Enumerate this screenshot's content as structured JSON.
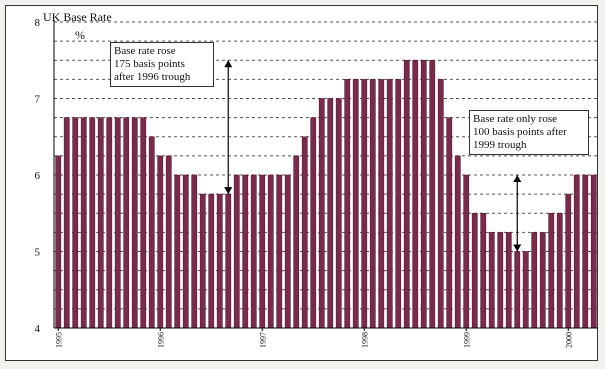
{
  "chart_data": {
    "type": "bar",
    "title": "UK Base Rate",
    "unit": "%",
    "ylim": [
      4,
      8
    ],
    "yticks": [
      "4",
      "5",
      "6",
      "7",
      "8"
    ],
    "xtick_labels": [
      {
        "label": "1995",
        "index": 0
      },
      {
        "label": "1996",
        "index": 12
      },
      {
        "label": "1997",
        "index": 24
      },
      {
        "label": "1998",
        "index": 36
      },
      {
        "label": "1999",
        "index": 48
      },
      {
        "label": "2000",
        "index": 60
      }
    ],
    "values": [
      6.25,
      6.75,
      6.75,
      6.75,
      6.75,
      6.75,
      6.75,
      6.75,
      6.75,
      6.75,
      6.75,
      6.5,
      6.25,
      6.25,
      6.0,
      6.0,
      6.0,
      5.75,
      5.75,
      5.75,
      5.75,
      6.0,
      6.0,
      6.0,
      6.0,
      6.0,
      6.0,
      6.0,
      6.25,
      6.5,
      6.75,
      7.0,
      7.0,
      7.0,
      7.25,
      7.25,
      7.25,
      7.25,
      7.25,
      7.25,
      7.25,
      7.5,
      7.5,
      7.5,
      7.5,
      7.25,
      6.75,
      6.25,
      6.0,
      5.5,
      5.5,
      5.25,
      5.25,
      5.25,
      5.0,
      5.0,
      5.25,
      5.25,
      5.5,
      5.5,
      5.75,
      6.0,
      6.0,
      6.0
    ],
    "annotations": [
      {
        "lines": [
          "Base rate rose",
          "175 basis points",
          "after 1996 trough"
        ]
      },
      {
        "lines": [
          "Base rate only rose",
          "100 basis points after",
          "1999 trough"
        ]
      }
    ]
  },
  "colors": {
    "bar_fill": "#7a2a4a",
    "bar_edge": "#4a1028",
    "grid": "#555555",
    "axis": "#000000"
  }
}
